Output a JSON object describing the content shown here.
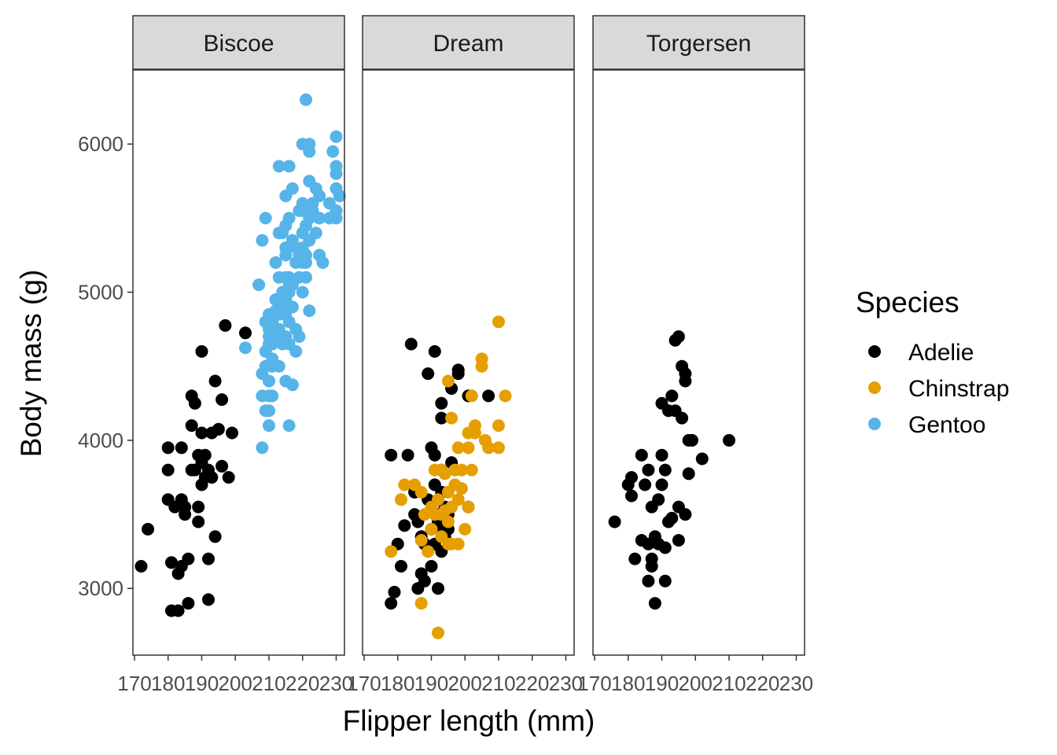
{
  "chart_data": {
    "type": "scatter",
    "facet_by": "island",
    "panels": [
      "Biscoe",
      "Dream",
      "Torgersen"
    ],
    "xlabel": "Flipper length (mm)",
    "ylabel": "Body mass (g)",
    "xlim": [
      170,
      232
    ],
    "ylim": [
      2550,
      6500
    ],
    "xticks": [
      170,
      180,
      190,
      200,
      210,
      220,
      230
    ],
    "yticks": [
      3000,
      4000,
      5000,
      6000
    ],
    "legend": {
      "title": "Species",
      "position": "right",
      "entries": [
        {
          "name": "Adelie",
          "color": "#000000"
        },
        {
          "name": "Chinstrap",
          "color": "#E69F00"
        },
        {
          "name": "Gentoo",
          "color": "#56B4E9"
        }
      ]
    },
    "series": [
      {
        "panel": "Biscoe",
        "species": "Adelie",
        "points": [
          [
            172,
            3150
          ],
          [
            174,
            3400
          ],
          [
            181,
            2850
          ],
          [
            181,
            3175
          ],
          [
            180,
            3600
          ],
          [
            180,
            3800
          ],
          [
            180,
            3950
          ],
          [
            182,
            3550
          ],
          [
            183,
            2850
          ],
          [
            183,
            3100
          ],
          [
            184,
            3600
          ],
          [
            184,
            3950
          ],
          [
            184,
            3150
          ],
          [
            185,
            3550
          ],
          [
            185,
            3500
          ],
          [
            186,
            2900
          ],
          [
            186,
            3200
          ],
          [
            187,
            4100
          ],
          [
            187,
            3800
          ],
          [
            187,
            4300
          ],
          [
            188,
            3800
          ],
          [
            188,
            4250
          ],
          [
            189,
            3450
          ],
          [
            189,
            3550
          ],
          [
            189,
            3900
          ],
          [
            190,
            3850
          ],
          [
            190,
            3700
          ],
          [
            190,
            4050
          ],
          [
            190,
            4600
          ],
          [
            191,
            3900
          ],
          [
            191,
            3750
          ],
          [
            192,
            3200
          ],
          [
            192,
            2925
          ],
          [
            192,
            3800
          ],
          [
            193,
            3750
          ],
          [
            193,
            4050
          ],
          [
            194,
            4400
          ],
          [
            194,
            3350
          ],
          [
            195,
            4075
          ],
          [
            196,
            4275
          ],
          [
            196,
            3825
          ],
          [
            197,
            4775
          ],
          [
            198,
            3750
          ],
          [
            199,
            4050
          ],
          [
            203,
            4725
          ]
        ]
      },
      {
        "panel": "Biscoe",
        "species": "Gentoo",
        "points": [
          [
            203,
            4625
          ],
          [
            207,
            5050
          ],
          [
            208,
            3950
          ],
          [
            208,
            4300
          ],
          [
            208,
            4450
          ],
          [
            208,
            5350
          ],
          [
            209,
            4600
          ],
          [
            209,
            4500
          ],
          [
            209,
            4800
          ],
          [
            209,
            4200
          ],
          [
            209,
            5500
          ],
          [
            210,
            4300
          ],
          [
            210,
            4400
          ],
          [
            210,
            4650
          ],
          [
            210,
            4700
          ],
          [
            210,
            4750
          ],
          [
            210,
            4850
          ],
          [
            210,
            4200
          ],
          [
            210,
            4100
          ],
          [
            211,
            4500
          ],
          [
            211,
            4800
          ],
          [
            211,
            4850
          ],
          [
            211,
            4650
          ],
          [
            211,
            4550
          ],
          [
            211,
            4300
          ],
          [
            212,
            4700
          ],
          [
            212,
            4750
          ],
          [
            212,
            4875
          ],
          [
            212,
            4950
          ],
          [
            212,
            5200
          ],
          [
            213,
            4500
          ],
          [
            213,
            4750
          ],
          [
            213,
            4850
          ],
          [
            213,
            5100
          ],
          [
            213,
            5400
          ],
          [
            213,
            5850
          ],
          [
            214,
            4650
          ],
          [
            214,
            4700
          ],
          [
            214,
            4925
          ],
          [
            214,
            5000
          ],
          [
            214,
            5400
          ],
          [
            215,
            4700
          ],
          [
            215,
            4850
          ],
          [
            215,
            4950
          ],
          [
            215,
            5100
          ],
          [
            215,
            5250
          ],
          [
            215,
            5300
          ],
          [
            215,
            5450
          ],
          [
            215,
            5650
          ],
          [
            215,
            4400
          ],
          [
            216,
            4100
          ],
          [
            216,
            4650
          ],
          [
            216,
            4800
          ],
          [
            216,
            5000
          ],
          [
            216,
            5050
          ],
          [
            216,
            5100
          ],
          [
            216,
            5500
          ],
          [
            216,
            5850
          ],
          [
            217,
            4375
          ],
          [
            217,
            4900
          ],
          [
            217,
            5050
          ],
          [
            217,
            5350
          ],
          [
            217,
            5700
          ],
          [
            218,
            4600
          ],
          [
            218,
            4750
          ],
          [
            218,
            5200
          ],
          [
            218,
            5300
          ],
          [
            219,
            4700
          ],
          [
            219,
            5250
          ],
          [
            219,
            5550
          ],
          [
            219,
            5100
          ],
          [
            220,
            5000
          ],
          [
            220,
            5200
          ],
          [
            220,
            5300
          ],
          [
            220,
            5400
          ],
          [
            220,
            5550
          ],
          [
            220,
            5600
          ],
          [
            220,
            6000
          ],
          [
            221,
            5100
          ],
          [
            221,
            5200
          ],
          [
            221,
            5250
          ],
          [
            221,
            5450
          ],
          [
            221,
            6300
          ],
          [
            222,
            4875
          ],
          [
            222,
            5350
          ],
          [
            222,
            5500
          ],
          [
            222,
            5750
          ],
          [
            222,
            5950
          ],
          [
            222,
            6000
          ],
          [
            223,
            5550
          ],
          [
            223,
            5600
          ],
          [
            224,
            5700
          ],
          [
            224,
            5400
          ],
          [
            225,
            5250
          ],
          [
            225,
            5500
          ],
          [
            225,
            5650
          ],
          [
            226,
            5200
          ],
          [
            228,
            5500
          ],
          [
            228,
            5600
          ],
          [
            229,
            5950
          ],
          [
            230,
            5500
          ],
          [
            230,
            5550
          ],
          [
            230,
            5700
          ],
          [
            230,
            5800
          ],
          [
            230,
            5850
          ],
          [
            230,
            6050
          ],
          [
            231,
            5650
          ]
        ]
      },
      {
        "panel": "Dream",
        "species": "Adelie",
        "points": [
          [
            178,
            2900
          ],
          [
            178,
            3900
          ],
          [
            179,
            2975
          ],
          [
            180,
            3300
          ],
          [
            181,
            3150
          ],
          [
            182,
            3425
          ],
          [
            183,
            3900
          ],
          [
            184,
            4650
          ],
          [
            185,
            3500
          ],
          [
            185,
            3650
          ],
          [
            186,
            3000
          ],
          [
            186,
            3450
          ],
          [
            187,
            3100
          ],
          [
            187,
            3350
          ],
          [
            188,
            3300
          ],
          [
            188,
            3050
          ],
          [
            189,
            3600
          ],
          [
            189,
            4450
          ],
          [
            190,
            3950
          ],
          [
            190,
            3400
          ],
          [
            190,
            3150
          ],
          [
            191,
            3700
          ],
          [
            191,
            3300
          ],
          [
            191,
            3900
          ],
          [
            191,
            4600
          ],
          [
            192,
            3000
          ],
          [
            192,
            3425
          ],
          [
            192,
            3450
          ],
          [
            192,
            3500
          ],
          [
            193,
            3250
          ],
          [
            193,
            3650
          ],
          [
            193,
            3800
          ],
          [
            193,
            4150
          ],
          [
            193,
            4250
          ],
          [
            194,
            3550
          ],
          [
            194,
            3350
          ],
          [
            195,
            3400
          ],
          [
            195,
            3500
          ],
          [
            196,
            4350
          ],
          [
            196,
            3850
          ],
          [
            198,
            4475
          ],
          [
            198,
            4450
          ],
          [
            201,
            3550
          ],
          [
            201,
            4300
          ],
          [
            207,
            4300
          ]
        ]
      },
      {
        "panel": "Dream",
        "species": "Chinstrap",
        "points": [
          [
            178,
            3250
          ],
          [
            181,
            3600
          ],
          [
            182,
            3700
          ],
          [
            185,
            3700
          ],
          [
            187,
            2900
          ],
          [
            187,
            3325
          ],
          [
            187,
            3650
          ],
          [
            188,
            3500
          ],
          [
            189,
            3250
          ],
          [
            190,
            3400
          ],
          [
            190,
            3550
          ],
          [
            191,
            3500
          ],
          [
            191,
            3800
          ],
          [
            192,
            2700
          ],
          [
            192,
            3600
          ],
          [
            193,
            3350
          ],
          [
            193,
            3500
          ],
          [
            193,
            3800
          ],
          [
            194,
            3525
          ],
          [
            194,
            3775
          ],
          [
            195,
            3650
          ],
          [
            195,
            3300
          ],
          [
            195,
            3450
          ],
          [
            195,
            4400
          ],
          [
            196,
            3550
          ],
          [
            196,
            3300
          ],
          [
            196,
            4150
          ],
          [
            197,
            3700
          ],
          [
            197,
            3800
          ],
          [
            198,
            3600
          ],
          [
            198,
            3300
          ],
          [
            198,
            3950
          ],
          [
            199,
            3675
          ],
          [
            199,
            3800
          ],
          [
            200,
            3400
          ],
          [
            201,
            3550
          ],
          [
            201,
            3950
          ],
          [
            201,
            4050
          ],
          [
            202,
            3800
          ],
          [
            202,
            4300
          ],
          [
            203,
            4050
          ],
          [
            203,
            4100
          ],
          [
            205,
            4550
          ],
          [
            205,
            4500
          ],
          [
            206,
            4000
          ],
          [
            207,
            3950
          ],
          [
            210,
            4800
          ],
          [
            210,
            4100
          ],
          [
            210,
            3950
          ],
          [
            212,
            4300
          ]
        ]
      },
      {
        "panel": "Torgersen",
        "species": "Adelie",
        "points": [
          [
            176,
            3450
          ],
          [
            180,
            3700
          ],
          [
            181,
            3625
          ],
          [
            181,
            3750
          ],
          [
            182,
            3200
          ],
          [
            184,
            3325
          ],
          [
            184,
            3900
          ],
          [
            185,
            3700
          ],
          [
            186,
            3050
          ],
          [
            186,
            3300
          ],
          [
            186,
            3800
          ],
          [
            187,
            3150
          ],
          [
            187,
            3550
          ],
          [
            187,
            3200
          ],
          [
            188,
            2900
          ],
          [
            188,
            3350
          ],
          [
            189,
            3300
          ],
          [
            189,
            3600
          ],
          [
            190,
            4250
          ],
          [
            190,
            3700
          ],
          [
            190,
            3900
          ],
          [
            191,
            3050
          ],
          [
            191,
            3800
          ],
          [
            191,
            3275
          ],
          [
            192,
            4200
          ],
          [
            192,
            3450
          ],
          [
            193,
            4300
          ],
          [
            193,
            3475
          ],
          [
            194,
            4675
          ],
          [
            194,
            4200
          ],
          [
            195,
            4700
          ],
          [
            195,
            3325
          ],
          [
            195,
            3550
          ],
          [
            196,
            4150
          ],
          [
            196,
            4500
          ],
          [
            197,
            4450
          ],
          [
            197,
            3500
          ],
          [
            197,
            4400
          ],
          [
            198,
            3775
          ],
          [
            198,
            4000
          ],
          [
            199,
            4000
          ],
          [
            202,
            3875
          ],
          [
            210,
            4000
          ]
        ]
      }
    ]
  }
}
